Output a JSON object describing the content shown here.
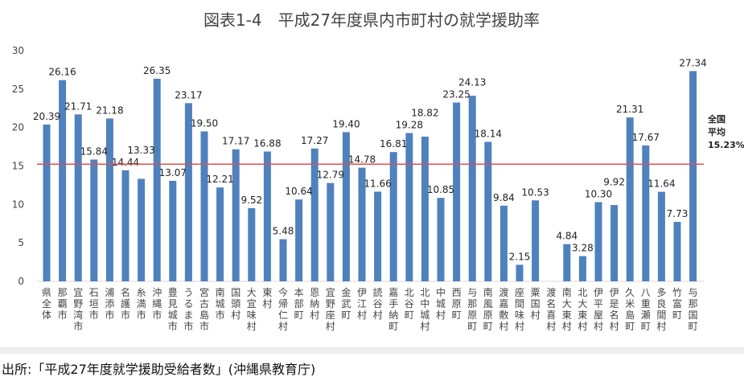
{
  "chart_data": {
    "type": "bar",
    "title": "図表1-4　平成27年度県内市町村の就学援助率",
    "xlabel": "",
    "ylabel": "",
    "ylim": [
      0,
      30
    ],
    "yticks": [
      0,
      5,
      10,
      15,
      20,
      25,
      30
    ],
    "grid": false,
    "bar_color": "#4f81bd",
    "categories": [
      "県全体",
      "那覇市",
      "宜野湾市",
      "石垣市",
      "浦添市",
      "名護市",
      "糸満市",
      "沖縄市",
      "豊見城市",
      "うるま市",
      "宮古島市",
      "南城市",
      "国頭村",
      "大宜味村",
      "東村",
      "今帰仁村",
      "本部町",
      "恩納村",
      "宜野座村",
      "金武町",
      "伊江村",
      "読谷村",
      "嘉手納町",
      "北谷町",
      "北中城村",
      "中城村",
      "西原町",
      "与那原町",
      "南風原町",
      "渡嘉敷村",
      "座間味村",
      "粟国村",
      "渡名喜村",
      "南大東村",
      "北大東村",
      "伊平屋村",
      "伊是名村",
      "久米島町",
      "八重瀬町",
      "多良間村",
      "竹富町",
      "与那国町"
    ],
    "values": [
      20.39,
      26.16,
      21.71,
      15.84,
      21.18,
      14.44,
      13.33,
      26.35,
      13.07,
      23.17,
      19.5,
      12.21,
      17.17,
      9.52,
      16.88,
      5.48,
      10.64,
      17.27,
      12.79,
      19.4,
      14.78,
      11.66,
      16.81,
      19.28,
      18.82,
      10.85,
      23.25,
      24.13,
      18.14,
      9.84,
      2.15,
      10.53,
      null,
      4.84,
      3.28,
      10.3,
      9.92,
      21.31,
      17.67,
      11.64,
      7.73,
      27.34
    ],
    "reference_line": {
      "value": 15.23,
      "color": "#e05050",
      "label_lines": [
        "全国",
        "平均",
        "15.23%"
      ]
    }
  },
  "source": "出所:「平成27年度就学援助受給者数」(沖縄県教育庁)"
}
